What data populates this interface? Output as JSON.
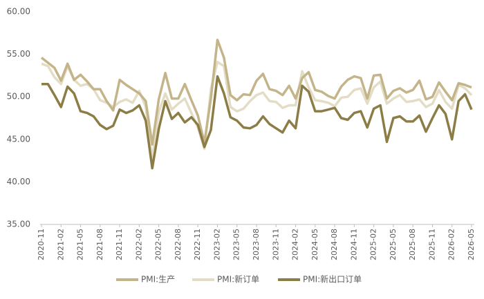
{
  "chart_data": {
    "type": "line",
    "categories": [
      "2020-11",
      null,
      null,
      "2021-02",
      null,
      null,
      "2021-05",
      null,
      null,
      "2021-08",
      null,
      null,
      "2021-11",
      null,
      null,
      "2022-02",
      null,
      null,
      "2022-05",
      null,
      null,
      "2022-08",
      null,
      null,
      "2022-11",
      null,
      null,
      "2023-02",
      null,
      null,
      "2023-05",
      null,
      null,
      "2023-08",
      null,
      null,
      "2023-11",
      null,
      null,
      "2024-02",
      null,
      null,
      "2024-05",
      null,
      null,
      "2024-08",
      null,
      null,
      "2024-11",
      null,
      null,
      "2025-02",
      null,
      null,
      "2025-05",
      null,
      null,
      "2025-08",
      null,
      null,
      "2025-11",
      null,
      null,
      "2026-02",
      null,
      null,
      "2026-05"
    ],
    "series": [
      {
        "name": "PMI:生产",
        "color": "#c4b48a",
        "values": [
          54.6,
          54.0,
          53.4,
          51.9,
          53.9,
          52.0,
          52.6,
          51.8,
          50.9,
          50.9,
          49.5,
          48.4,
          52.0,
          51.4,
          50.9,
          50.4,
          49.5,
          44.4,
          49.7,
          52.8,
          49.8,
          49.8,
          51.5,
          49.6,
          47.8,
          44.6,
          49.8,
          56.7,
          54.6,
          50.2,
          49.6,
          50.3,
          50.2,
          51.9,
          52.7,
          50.9,
          50.7,
          50.2,
          51.3,
          49.8,
          52.2,
          52.9,
          50.8,
          50.6,
          50.1,
          49.8,
          51.2,
          52.0,
          52.4,
          52.2,
          49.8,
          52.5,
          52.6,
          49.8,
          50.7,
          51.0,
          50.5,
          50.8,
          51.9,
          49.7,
          50.0,
          51.7,
          50.6,
          49.6,
          51.6,
          51.4,
          51.1
        ]
      },
      {
        "name": "PMI:新订单",
        "color": "#e3ddc6",
        "values": [
          53.9,
          53.6,
          52.3,
          51.5,
          53.6,
          52.0,
          51.3,
          51.5,
          50.9,
          49.6,
          49.3,
          48.8,
          49.4,
          49.7,
          49.3,
          50.7,
          48.8,
          42.6,
          48.2,
          50.4,
          48.5,
          49.2,
          49.8,
          48.1,
          46.4,
          43.9,
          50.9,
          54.1,
          53.6,
          48.8,
          48.3,
          48.6,
          49.5,
          50.2,
          50.5,
          49.5,
          49.4,
          48.7,
          49.0,
          49.0,
          53.0,
          51.1,
          49.6,
          49.5,
          49.3,
          48.9,
          49.9,
          50.0,
          50.8,
          51.0,
          49.2,
          51.1,
          51.8,
          49.2,
          49.8,
          50.2,
          49.4,
          49.5,
          49.7,
          48.8,
          49.2,
          50.8,
          49.4,
          48.6,
          51.4,
          51.0,
          50.2
        ]
      },
      {
        "name": "PMI:新出口订单",
        "color": "#8c7c46",
        "values": [
          51.5,
          51.5,
          50.2,
          48.8,
          51.2,
          50.4,
          48.3,
          48.1,
          47.7,
          46.7,
          46.2,
          46.6,
          48.5,
          48.1,
          48.4,
          49.0,
          47.2,
          41.6,
          46.2,
          49.5,
          47.4,
          48.1,
          47.0,
          47.6,
          46.7,
          44.1,
          46.1,
          52.4,
          50.4,
          47.6,
          47.2,
          46.4,
          46.3,
          46.7,
          47.7,
          46.8,
          46.3,
          45.8,
          47.2,
          46.3,
          51.3,
          50.6,
          48.3,
          48.3,
          48.5,
          48.7,
          47.5,
          47.3,
          48.1,
          48.3,
          46.4,
          48.6,
          49.0,
          44.7,
          47.5,
          47.7,
          47.1,
          47.1,
          47.8,
          45.9,
          47.5,
          49.0,
          48.0,
          45.0,
          49.5,
          50.3,
          48.5
        ]
      }
    ],
    "ylim": [
      35,
      60
    ],
    "yticks": [
      {
        "value": 35,
        "label": "35.00"
      },
      {
        "value": 40,
        "label": "40.00"
      },
      {
        "value": 45,
        "label": "45.00"
      },
      {
        "value": 50,
        "label": "50.00"
      },
      {
        "value": 55,
        "label": "55.00"
      },
      {
        "value": 60,
        "label": "60.00"
      }
    ],
    "grid": false,
    "legend": "bottom"
  }
}
